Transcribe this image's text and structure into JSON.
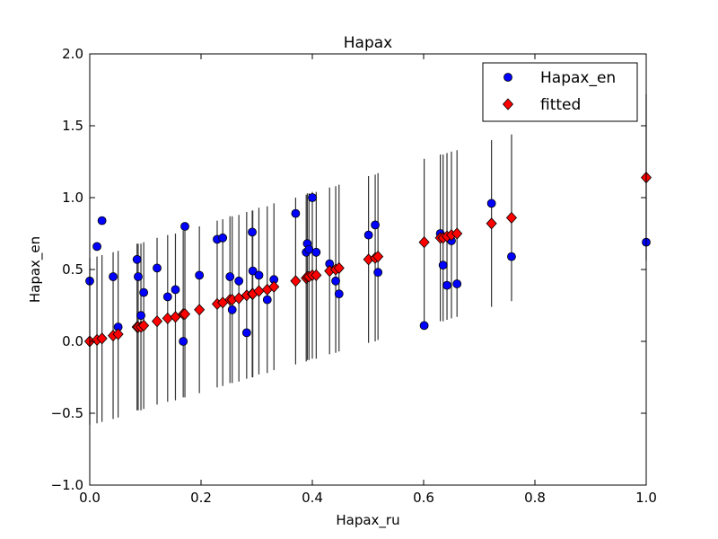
{
  "chart_data": {
    "type": "scatter",
    "title": "Hapax",
    "xlabel": "Hapax_ru",
    "ylabel": "Hapax_en",
    "xlim": [
      0.0,
      1.0
    ],
    "ylim": [
      -1.0,
      2.0
    ],
    "xticks": [
      "0.0",
      "0.2",
      "0.4",
      "0.6",
      "0.8",
      "1.0"
    ],
    "yticks": [
      "−1.0",
      "−0.5",
      "0.0",
      "0.5",
      "1.0",
      "1.5",
      "2.0"
    ],
    "grid": false,
    "legend_position": "top-right",
    "series": [
      {
        "name": "Hapax_en",
        "marker": "circle",
        "color": "#0000ff",
        "points": [
          [
            0.0,
            0.42
          ],
          [
            0.013,
            0.66
          ],
          [
            0.022,
            0.84
          ],
          [
            0.042,
            0.45
          ],
          [
            0.051,
            0.1
          ],
          [
            0.085,
            0.57
          ],
          [
            0.087,
            0.45
          ],
          [
            0.092,
            0.18
          ],
          [
            0.097,
            0.34
          ],
          [
            0.121,
            0.51
          ],
          [
            0.14,
            0.31
          ],
          [
            0.154,
            0.36
          ],
          [
            0.168,
            0.0
          ],
          [
            0.171,
            0.8
          ],
          [
            0.197,
            0.46
          ],
          [
            0.229,
            0.71
          ],
          [
            0.239,
            0.72
          ],
          [
            0.252,
            0.45
          ],
          [
            0.256,
            0.22
          ],
          [
            0.268,
            0.42
          ],
          [
            0.282,
            0.06
          ],
          [
            0.292,
            0.76
          ],
          [
            0.293,
            0.49
          ],
          [
            0.304,
            0.46
          ],
          [
            0.319,
            0.29
          ],
          [
            0.331,
            0.43
          ],
          [
            0.37,
            0.89
          ],
          [
            0.389,
            0.62
          ],
          [
            0.391,
            0.68
          ],
          [
            0.394,
            0.64
          ],
          [
            0.4,
            1.0
          ],
          [
            0.407,
            0.62
          ],
          [
            0.431,
            0.54
          ],
          [
            0.442,
            0.42
          ],
          [
            0.448,
            0.33
          ],
          [
            0.501,
            0.74
          ],
          [
            0.513,
            0.81
          ],
          [
            0.518,
            0.48
          ],
          [
            0.601,
            0.11
          ],
          [
            0.63,
            0.75
          ],
          [
            0.635,
            0.53
          ],
          [
            0.642,
            0.39
          ],
          [
            0.65,
            0.7
          ],
          [
            0.66,
            0.4
          ],
          [
            0.722,
            0.96
          ],
          [
            0.758,
            0.59
          ],
          [
            1.0,
            0.69
          ]
        ]
      },
      {
        "name": "fitted",
        "marker": "diamond",
        "color": "#ff0000",
        "error_bar": 0.58,
        "points": [
          [
            0.0,
            0.0
          ],
          [
            0.013,
            0.01
          ],
          [
            0.022,
            0.02
          ],
          [
            0.042,
            0.04
          ],
          [
            0.051,
            0.05
          ],
          [
            0.085,
            0.1
          ],
          [
            0.087,
            0.1
          ],
          [
            0.092,
            0.1
          ],
          [
            0.097,
            0.11
          ],
          [
            0.121,
            0.14
          ],
          [
            0.14,
            0.16
          ],
          [
            0.154,
            0.17
          ],
          [
            0.168,
            0.19
          ],
          [
            0.171,
            0.19
          ],
          [
            0.197,
            0.22
          ],
          [
            0.229,
            0.26
          ],
          [
            0.239,
            0.27
          ],
          [
            0.252,
            0.29
          ],
          [
            0.256,
            0.29
          ],
          [
            0.268,
            0.3
          ],
          [
            0.282,
            0.32
          ],
          [
            0.292,
            0.33
          ],
          [
            0.293,
            0.33
          ],
          [
            0.304,
            0.35
          ],
          [
            0.319,
            0.36
          ],
          [
            0.331,
            0.38
          ],
          [
            0.37,
            0.42
          ],
          [
            0.389,
            0.44
          ],
          [
            0.391,
            0.45
          ],
          [
            0.394,
            0.45
          ],
          [
            0.4,
            0.46
          ],
          [
            0.407,
            0.46
          ],
          [
            0.431,
            0.49
          ],
          [
            0.442,
            0.5
          ],
          [
            0.448,
            0.51
          ],
          [
            0.501,
            0.57
          ],
          [
            0.513,
            0.58
          ],
          [
            0.518,
            0.59
          ],
          [
            0.601,
            0.69
          ],
          [
            0.63,
            0.72
          ],
          [
            0.635,
            0.72
          ],
          [
            0.642,
            0.73
          ],
          [
            0.65,
            0.74
          ],
          [
            0.66,
            0.75
          ],
          [
            0.722,
            0.82
          ],
          [
            0.758,
            0.86
          ],
          [
            1.0,
            1.14
          ]
        ]
      }
    ]
  }
}
